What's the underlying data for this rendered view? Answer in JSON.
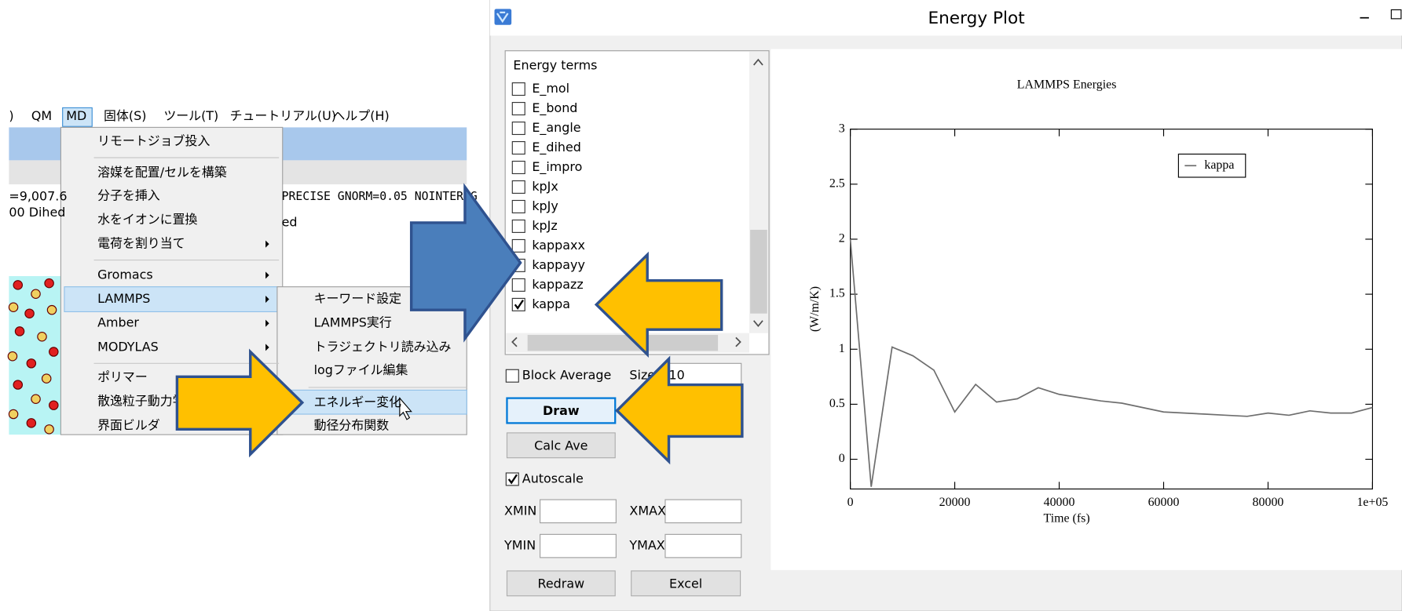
{
  "menubar": [
    ")",
    "QM",
    "MD",
    "固体(S)",
    "ツール(T)",
    "チュートリアル(U)",
    "ヘルプ(H)"
  ],
  "background_texts": [
    "=9,007.6",
    "00 Dihed",
    "PRECISE GNORM=0.05 NOINTER G",
    "ed"
  ],
  "menu": [
    {
      "label": "リモートジョブ投入"
    },
    {
      "label": "溶媒を配置/セルを構築"
    },
    {
      "label": "分子を挿入"
    },
    {
      "label": "水をイオンに置換"
    },
    {
      "label": "電荷を割り当て",
      "has_submenu": true
    },
    {
      "label": "Gromacs",
      "has_submenu": true
    },
    {
      "label": "LAMMPS",
      "has_submenu": true,
      "selected": true
    },
    {
      "label": "Amber",
      "has_submenu": true
    },
    {
      "label": "MODYLAS",
      "has_submenu": true
    },
    {
      "label": "ポリマー"
    },
    {
      "label": "散逸粒子動力学"
    },
    {
      "label": "界面ビルダ"
    }
  ],
  "submenu": [
    {
      "label": "キーワード設定"
    },
    {
      "label": "LAMMPS実行"
    },
    {
      "label": "トラジェクトリ読み込み"
    },
    {
      "label": "logファイル編集"
    },
    {
      "label": "エネルギー変化",
      "selected": true
    },
    {
      "label": "動径分布関数"
    }
  ],
  "window": {
    "title": "Energy Plot",
    "list_header": "Energy terms",
    "energy_terms": [
      {
        "label": "E_mol",
        "checked": false
      },
      {
        "label": "E_bond",
        "checked": false
      },
      {
        "label": "E_angle",
        "checked": false
      },
      {
        "label": "E_dihed",
        "checked": false
      },
      {
        "label": "E_impro",
        "checked": false
      },
      {
        "label": "kpJx",
        "checked": false
      },
      {
        "label": "kpJy",
        "checked": false
      },
      {
        "label": "kpJz",
        "checked": false
      },
      {
        "label": "kappaxx",
        "checked": false
      },
      {
        "label": "kappayy",
        "checked": false
      },
      {
        "label": "kappazz",
        "checked": false
      },
      {
        "label": "kappa",
        "checked": true
      }
    ],
    "block_average": {
      "label": "Block Average",
      "checked": false
    },
    "size": {
      "label": "Size",
      "value": 10
    },
    "draw_button": "Draw",
    "calc_ave_button": "Calc Ave",
    "autoscale": {
      "label": "Autoscale",
      "checked": true
    },
    "xmin_label": "XMIN",
    "xmax_label": "XMAX",
    "ymin_label": "YMIN",
    "ymax_label": "YMAX",
    "redraw_button": "Redraw",
    "excel_button": "Excel"
  },
  "chart_data": {
    "type": "line",
    "title": "LAMMPS Energies",
    "x_label": "Time (fs)",
    "y_label": "(W/m/K)",
    "x": [
      0,
      4000,
      8000,
      12000,
      16000,
      20000,
      24000,
      28000,
      32000,
      36000,
      40000,
      44000,
      48000,
      52000,
      56000,
      60000,
      64000,
      68000,
      72000,
      76000,
      80000,
      84000,
      88000,
      92000,
      96000,
      100000
    ],
    "series": [
      {
        "name": "kappa",
        "color": "#6e6e6e",
        "values": [
          2.0,
          -0.25,
          1.02,
          0.94,
          0.81,
          0.43,
          0.68,
          0.52,
          0.55,
          0.65,
          0.59,
          0.56,
          0.53,
          0.51,
          0.47,
          0.43,
          0.42,
          0.41,
          0.4,
          0.39,
          0.42,
          0.4,
          0.44,
          0.42,
          0.42,
          0.47
        ]
      }
    ],
    "xlim": [
      0,
      100000
    ],
    "ylim": [
      -0.27,
      3
    ],
    "xticks": [
      0,
      20000,
      40000,
      60000,
      80000,
      {
        "value": 100000,
        "label": "1e+05"
      }
    ],
    "yticks": [
      0,
      0.5,
      1,
      1.5,
      2,
      2.5,
      3
    ],
    "legend": "upper right"
  }
}
